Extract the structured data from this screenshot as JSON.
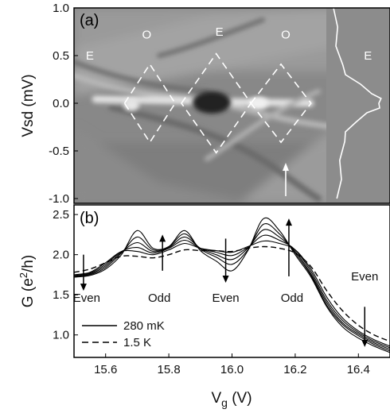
{
  "chart_data": [
    {
      "type": "heatmap",
      "panel_label": "(a)",
      "ylabel": "Vsd (mV)",
      "ylim": [
        -1.05,
        1.0
      ],
      "yticks": [
        "1.0",
        "0.5",
        "0.0",
        "-0.5",
        "-1.0"
      ],
      "ytick_values": [
        1.0,
        0.5,
        0.0,
        -0.5,
        -1.0
      ],
      "xlim": [
        15.5,
        16.5
      ],
      "parity_labels": [
        {
          "text": "E",
          "vg": 15.55,
          "vsd": 0.5
        },
        {
          "text": "O",
          "vg": 15.73,
          "vsd": 0.72
        },
        {
          "text": "E",
          "vg": 15.96,
          "vsd": 0.75
        },
        {
          "text": "O",
          "vg": 16.17,
          "vsd": 0.72
        },
        {
          "text": "E",
          "vg": 16.43,
          "vsd": 0.5
        }
      ],
      "diamonds": [
        {
          "vg_left": 15.66,
          "vg_right": 15.82,
          "vsd_half": 0.41
        },
        {
          "vg_left": 15.84,
          "vg_right": 16.06,
          "vsd_half": 0.52
        },
        {
          "vg_left": 16.06,
          "vg_right": 16.25,
          "vsd_half": 0.41
        }
      ],
      "inset_trace": {
        "description_units": "profile at arrow position",
        "vsd": [
          1.0,
          0.8,
          0.6,
          0.4,
          0.3,
          0.2,
          0.1,
          0.05,
          0.0,
          -0.05,
          -0.1,
          -0.2,
          -0.3,
          -0.4,
          -0.6,
          -0.8,
          -1.0
        ],
        "level": [
          0.05,
          0.07,
          0.1,
          0.18,
          0.3,
          0.55,
          0.85,
          0.98,
          1.0,
          0.95,
          0.75,
          0.45,
          0.3,
          0.22,
          0.18,
          0.15,
          0.12
        ]
      },
      "arrow_vg": 16.17
    },
    {
      "type": "line",
      "panel_label": "(b)",
      "xlabel_main": "V",
      "xlabel_sub": "g",
      "xlabel_unit": " (V)",
      "ylabel_main": "G (e",
      "ylabel_sup": "2",
      "ylabel_tail": "/h)",
      "xlim": [
        15.5,
        16.5
      ],
      "ylim": [
        0.72,
        2.62
      ],
      "xticks": [
        "15.6",
        "15.8",
        "16.0",
        "16.2",
        "16.4"
      ],
      "xtick_values": [
        15.6,
        15.8,
        16.0,
        16.2,
        16.4
      ],
      "yticks": [
        "1.0",
        "1.5",
        "2.0",
        "2.5"
      ],
      "ytick_values": [
        1.0,
        1.5,
        2.0,
        2.5
      ],
      "x": [
        15.5,
        15.55,
        15.6,
        15.65,
        15.7,
        15.75,
        15.8,
        15.85,
        15.9,
        15.95,
        16.0,
        16.05,
        16.1,
        16.15,
        16.2,
        16.25,
        16.3,
        16.35,
        16.4,
        16.45,
        16.5
      ],
      "series": [
        {
          "name": "280 mK",
          "values": [
            1.72,
            1.74,
            1.82,
            2.0,
            2.3,
            2.08,
            2.1,
            2.3,
            2.05,
            1.92,
            1.8,
            2.05,
            2.45,
            2.3,
            2.0,
            1.72,
            1.35,
            1.1,
            0.96,
            0.86,
            0.78
          ]
        },
        {
          "values": [
            1.72,
            1.75,
            1.84,
            2.02,
            2.22,
            2.06,
            2.1,
            2.26,
            2.07,
            1.97,
            1.88,
            2.06,
            2.38,
            2.26,
            2.02,
            1.74,
            1.37,
            1.13,
            0.99,
            0.88,
            0.8
          ]
        },
        {
          "values": [
            1.73,
            1.76,
            1.86,
            2.03,
            2.15,
            2.04,
            2.09,
            2.22,
            2.08,
            2.0,
            1.94,
            2.08,
            2.31,
            2.22,
            2.04,
            1.76,
            1.4,
            1.15,
            1.01,
            0.9,
            0.82
          ]
        },
        {
          "values": [
            1.74,
            1.77,
            1.88,
            2.04,
            2.09,
            2.02,
            2.08,
            2.18,
            2.08,
            2.03,
            1.99,
            2.09,
            2.24,
            2.18,
            2.06,
            1.79,
            1.43,
            1.18,
            1.03,
            0.92,
            0.84
          ]
        },
        {
          "values": [
            1.75,
            1.78,
            1.9,
            2.04,
            2.04,
            2.0,
            2.06,
            2.14,
            2.08,
            2.05,
            2.03,
            2.1,
            2.17,
            2.14,
            2.06,
            1.82,
            1.47,
            1.21,
            1.05,
            0.94,
            0.86
          ]
        },
        {
          "name": "1.5 K",
          "dashed": true,
          "values": [
            1.78,
            1.82,
            1.9,
            1.98,
            1.98,
            1.96,
            2.0,
            2.06,
            2.05,
            2.05,
            2.04,
            2.08,
            2.1,
            2.08,
            2.02,
            1.85,
            1.55,
            1.3,
            1.12,
            1.0,
            0.92
          ]
        }
      ],
      "parity_labels": [
        {
          "text": "Even",
          "vg": 15.54,
          "g": 1.46
        },
        {
          "text": "Odd",
          "vg": 15.77,
          "g": 1.46
        },
        {
          "text": "Even",
          "vg": 15.98,
          "g": 1.46
        },
        {
          "text": "Odd",
          "vg": 16.19,
          "g": 1.46
        },
        {
          "text": "Even",
          "vg": 16.42,
          "g": 1.73
        }
      ],
      "arrows": [
        {
          "vg": 15.53,
          "from": 2.0,
          "to": 1.55
        },
        {
          "vg": 15.78,
          "from": 1.8,
          "to": 2.25
        },
        {
          "vg": 15.98,
          "from": 2.2,
          "to": 1.65
        },
        {
          "vg": 16.18,
          "from": 1.73,
          "to": 2.45
        },
        {
          "vg": 16.42,
          "from": 1.35,
          "to": 0.85
        }
      ],
      "legend": {
        "placement": "bottom-left",
        "entries": [
          "280 mK",
          "1.5 K"
        ]
      }
    }
  ]
}
